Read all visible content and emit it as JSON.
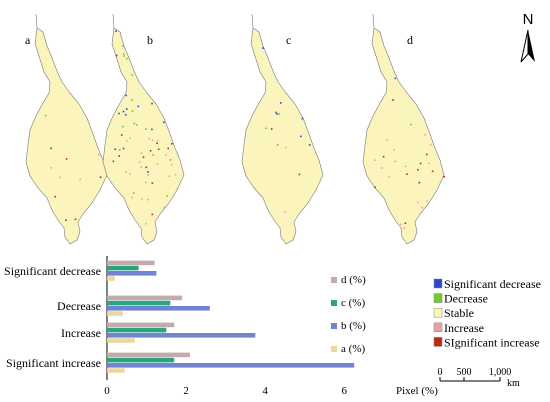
{
  "panels": [
    {
      "label": "a",
      "density": {
        "sig_decrease": 0.0,
        "decrease": 0.01,
        "stable": 0.97,
        "increase": 0.02,
        "sig_increase": 0.005
      }
    },
    {
      "label": "b",
      "density": {
        "sig_decrease": 0.08,
        "decrease": 0.1,
        "stable": 0.72,
        "increase": 0.07,
        "sig_increase": 0.03
      }
    },
    {
      "label": "c",
      "density": {
        "sig_decrease": 0.05,
        "decrease": 0.04,
        "stable": 0.89,
        "increase": 0.01,
        "sig_increase": 0.005
      }
    },
    {
      "label": "d",
      "density": {
        "sig_decrease": 0.02,
        "decrease": 0.04,
        "stable": 0.86,
        "increase": 0.06,
        "sig_increase": 0.02
      }
    }
  ],
  "north_label": "N",
  "map_legend": [
    {
      "label": "Significant decrease",
      "color": "#2c48c9"
    },
    {
      "label": "Decrease",
      "color": "#6ccc2a"
    },
    {
      "label": "Stable",
      "color": "#fbf5bd"
    },
    {
      "label": "Increase",
      "color": "#e5a3a0"
    },
    {
      "label": "SIgnificant increase",
      "color": "#c0271b"
    }
  ],
  "scale_bar": {
    "ticks": [
      "0",
      "500",
      "1,000"
    ],
    "unit": "km"
  },
  "colors": {
    "map_fill": "#fbf5bd",
    "map_stroke": "#777777"
  },
  "chart_data": {
    "type": "bar",
    "orientation": "horizontal",
    "categories": [
      "Significant decrease",
      "Decrease",
      "Increase",
      "Significant increase"
    ],
    "series": [
      {
        "name": "d (%)",
        "color": "#c2aba9",
        "values": [
          1.2,
          1.9,
          1.7,
          2.1
        ]
      },
      {
        "name": "c (%)",
        "color": "#28a582",
        "values": [
          0.8,
          1.6,
          1.5,
          1.7
        ]
      },
      {
        "name": "b (%)",
        "color": "#7184cf",
        "values": [
          1.25,
          2.6,
          3.75,
          6.25
        ]
      },
      {
        "name": "a (%)",
        "color": "#ead8a2",
        "values": [
          0.2,
          0.4,
          0.7,
          0.45
        ]
      }
    ],
    "xticks": [
      "0",
      "2",
      "4",
      "6"
    ],
    "xlim": [
      0,
      6.6
    ],
    "xlabel": "Pixel  (%)",
    "legend_position": "right"
  }
}
